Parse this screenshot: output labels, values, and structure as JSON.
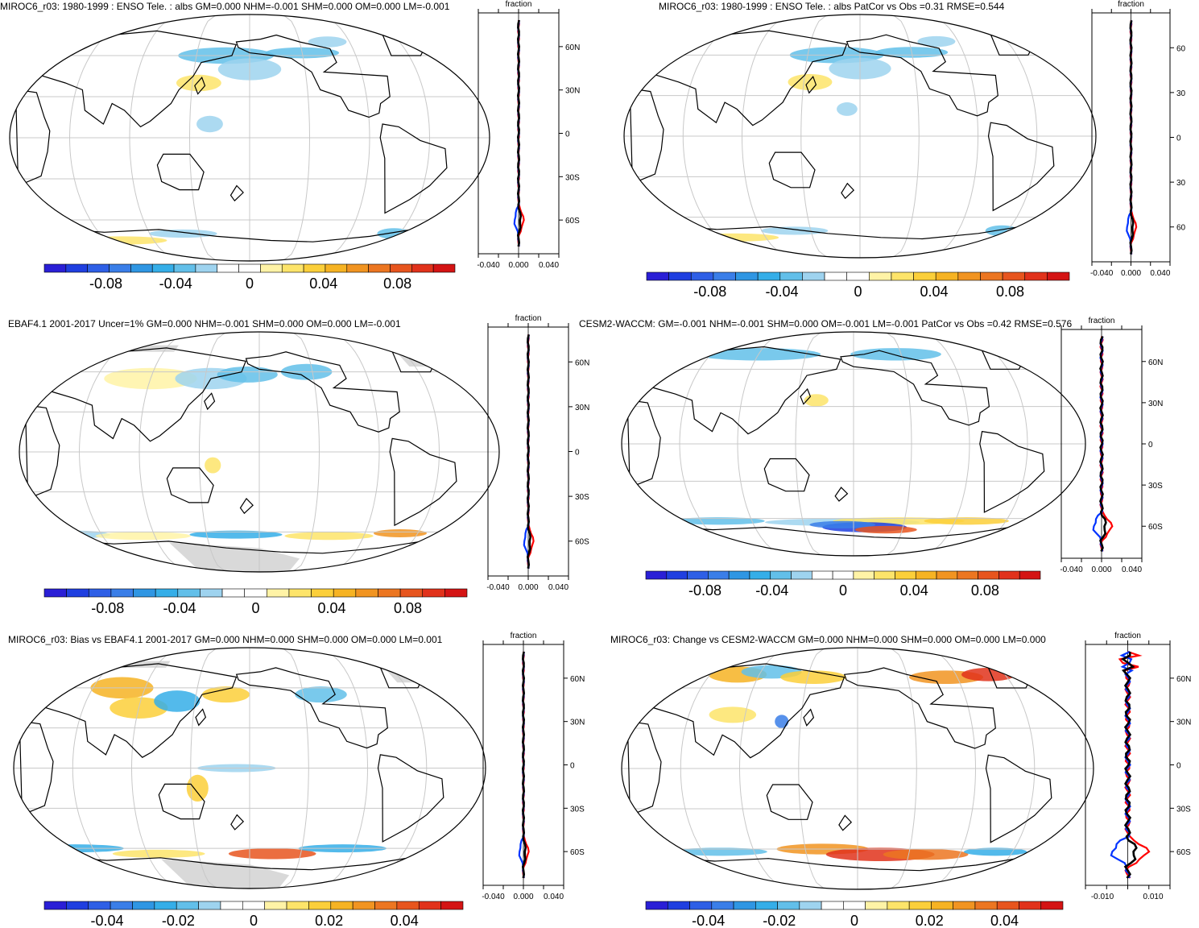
{
  "colors": {
    "palette": [
      "#2a1fd6",
      "#1f3fe0",
      "#2e5fe6",
      "#3a7ee8",
      "#2f96e3",
      "#35aee8",
      "#62bfe9",
      "#9ed3ef",
      "#ffffff",
      "#ffffff",
      "#fff3a6",
      "#fde46a",
      "#fbcf3a",
      "#f6b323",
      "#f19421",
      "#ec7621",
      "#e7551e",
      "#e1321b",
      "#d41414"
    ],
    "land": "#000000",
    "grid": "#c8c8c8",
    "missing": "#d9d9d9"
  },
  "panels": [
    {
      "title": "MIROC6_r03: 1980-1999 : ENSO Tele. : albs GM=0.000 NHM=-0.001 SHM=0.000 OM=0.000 LM=-0.001",
      "zonal_title": "fraction",
      "zonal_xticks": [
        "-0.040",
        "0.000",
        "0.040"
      ],
      "zonal_yticks": [
        "60N",
        "30N",
        "0",
        "30S",
        "60S"
      ],
      "cbar_labels": [
        "-0.08",
        "-0.04",
        "0",
        "0.04",
        "0.08"
      ]
    },
    {
      "title": "MIROC6_r03: 1980-1999 : ENSO Tele. : albs PatCor vs Obs =0.31 RMSE=0.544",
      "zonal_title": "fraction",
      "zonal_xticks": [
        "-0.040",
        "0.000",
        "0.040"
      ],
      "zonal_yticks": [
        "60",
        "30",
        "0",
        "30",
        "60"
      ],
      "cbar_labels": [
        "-0.08",
        "-0.04",
        "0",
        "0.04",
        "0.08"
      ]
    },
    {
      "title": "EBAF4.1 2001-2017 Uncer=1% GM=0.000 NHM=-0.001 SHM=0.000 OM=0.000 LM=-0.001",
      "zonal_title": "fraction",
      "zonal_xticks": [
        "-0.040",
        "0.000",
        "0.040"
      ],
      "zonal_yticks": [
        "60N",
        "30N",
        "0",
        "30S",
        "60S"
      ],
      "cbar_labels": [
        "-0.08",
        "-0.04",
        "0",
        "0.04",
        "0.08"
      ]
    },
    {
      "title": "CESM2-WACCM: GM=-0.001 NHM=-0.001 SHM=0.000 OM=-0.001 LM=-0.001 PatCor vs Obs =0.42 RMSE=0.576",
      "zonal_title": "fraction",
      "zonal_xticks": [
        "-0.040",
        "0.000",
        "0.040"
      ],
      "zonal_yticks": [
        "60N",
        "30N",
        "0",
        "30S",
        "60S"
      ],
      "cbar_labels": [
        "-0.08",
        "-0.04",
        "0",
        "0.04",
        "0.08"
      ]
    },
    {
      "title": "MIROC6_r03: Bias vs EBAF4.1 2001-2017 GM=0.000 NHM=0.000 SHM=0.000 OM=0.000 LM=0.001",
      "zonal_title": "fraction",
      "zonal_xticks": [
        "-0.040",
        "0.000",
        "0.040"
      ],
      "zonal_yticks": [
        "60N",
        "30N",
        "0",
        "30S",
        "60S"
      ],
      "cbar_labels": [
        "-0.04",
        "-0.02",
        "0",
        "0.02",
        "0.04"
      ]
    },
    {
      "title": "MIROC6_r03: Change vs CESM2-WACCM GM=0.000 NHM=0.000 SHM=0.000 OM=0.000 LM=0.000",
      "zonal_title": "fraction",
      "zonal_xticks": [
        "-0.010",
        "0.010"
      ],
      "zonal_yticks": [
        "60N",
        "30N",
        "0",
        "30S",
        "60S"
      ],
      "cbar_labels": [
        "-0.04",
        "-0.02",
        "0",
        "0.02",
        "0.04"
      ]
    }
  ]
}
